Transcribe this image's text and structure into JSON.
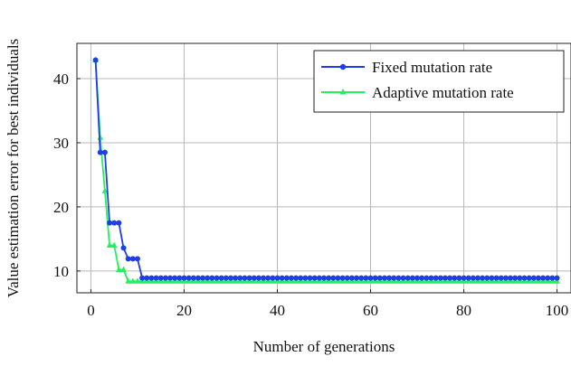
{
  "chart_data": {
    "type": "line",
    "title": "",
    "xlabel": "Number of generations",
    "ylabel": "Value estimation error for best individuals",
    "xlim": [
      -3,
      103
    ],
    "ylim": [
      6.6,
      45.5
    ],
    "xticks": [
      0,
      20,
      40,
      60,
      80,
      100
    ],
    "yticks": [
      10,
      20,
      30,
      40
    ],
    "grid": true,
    "legend_position": "top-right",
    "series": [
      {
        "name": "Fixed mutation rate",
        "color": "#1f3fe6",
        "marker": "circle",
        "breakpoints": [
          [
            1,
            42.9
          ],
          [
            2,
            28.5
          ],
          [
            3,
            28.5
          ],
          [
            4,
            17.5
          ],
          [
            5,
            17.5
          ],
          [
            6,
            17.5
          ],
          [
            7,
            13.6
          ],
          [
            8,
            11.9
          ],
          [
            9,
            11.9
          ],
          [
            10,
            11.9
          ],
          [
            11,
            8.9
          ],
          [
            100,
            8.9
          ]
        ]
      },
      {
        "name": "Adaptive mutation rate",
        "color": "#22f060",
        "marker": "triangle",
        "breakpoints": [
          [
            1,
            42.9
          ],
          [
            2,
            30.8
          ],
          [
            3,
            22.5
          ],
          [
            4,
            14.0
          ],
          [
            5,
            14.0
          ],
          [
            6,
            10.2
          ],
          [
            7,
            10.2
          ],
          [
            8,
            8.4
          ],
          [
            100,
            8.4
          ]
        ]
      }
    ]
  }
}
